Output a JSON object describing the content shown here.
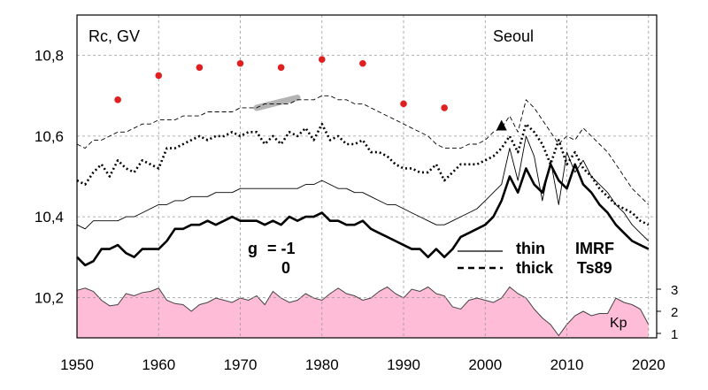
{
  "chart_data": {
    "type": "line",
    "ylabel": "Rc, GV",
    "station": "Seoul",
    "xlim": [
      1950,
      2021
    ],
    "ylim": [
      10.1,
      10.9
    ],
    "grid": true,
    "x_ticks": [
      1950,
      1960,
      1970,
      1980,
      1990,
      2000,
      2010,
      2020
    ],
    "y_ticks": [
      10.2,
      10.4,
      10.6,
      10.8
    ],
    "y_tick_labels": [
      "10,2",
      "10,4",
      "10,6",
      "10,8"
    ],
    "kp_axis": {
      "label": "Kp",
      "ticks": [
        1,
        2,
        3
      ],
      "range": [
        0.8,
        3.2
      ]
    },
    "legend": {
      "g_label": "g",
      "g_values": [
        "= -1",
        "0"
      ],
      "line_styles": [
        "thin",
        "thick"
      ],
      "models": [
        "IMRF",
        "Ts89"
      ]
    },
    "colors": {
      "kp_fill": "#ffbcd6",
      "kp_line": "#444444",
      "observed_points": "#e02020",
      "highlight_segment": "#b4b4b4",
      "marker": "#000000",
      "grid": "#999999"
    },
    "series": [
      {
        "key": "imrf_g_minus1",
        "style": "thin-dashed",
        "x": [
          1950,
          1951,
          1952,
          1953,
          1954,
          1955,
          1956,
          1957,
          1958,
          1959,
          1960,
          1961,
          1962,
          1963,
          1964,
          1965,
          1966,
          1967,
          1968,
          1969,
          1970,
          1971,
          1972,
          1973,
          1974,
          1975,
          1976,
          1977,
          1978,
          1979,
          1980,
          1981,
          1982,
          1983,
          1984,
          1985,
          1986,
          1987,
          1988,
          1989,
          1990,
          1991,
          1992,
          1993,
          1994,
          1995,
          1996,
          1997,
          1998,
          1999,
          2000,
          2001,
          2002,
          2003,
          2004,
          2005,
          2006,
          2007,
          2008,
          2009,
          2010,
          2011,
          2012,
          2013,
          2014,
          2015,
          2016,
          2017,
          2018,
          2019,
          2020
        ],
        "y": [
          10.58,
          10.57,
          10.59,
          10.59,
          10.6,
          10.61,
          10.61,
          10.62,
          10.63,
          10.63,
          10.64,
          10.64,
          10.64,
          10.65,
          10.65,
          10.65,
          10.66,
          10.66,
          10.66,
          10.66,
          10.67,
          10.67,
          10.67,
          10.68,
          10.68,
          10.68,
          10.68,
          10.69,
          10.69,
          10.69,
          10.7,
          10.7,
          10.69,
          10.69,
          10.68,
          10.68,
          10.67,
          10.66,
          10.65,
          10.64,
          10.63,
          10.62,
          10.61,
          10.6,
          10.58,
          10.57,
          10.57,
          10.57,
          10.58,
          10.58,
          10.59,
          10.61,
          10.62,
          10.65,
          10.61,
          10.69,
          10.67,
          10.64,
          10.61,
          10.58,
          10.6,
          10.59,
          10.62,
          10.6,
          10.58,
          10.56,
          10.53,
          10.5,
          10.47,
          10.45,
          10.43
        ]
      },
      {
        "key": "ts89_g_minus1",
        "style": "thick-dotted",
        "x": [
          1950,
          1951,
          1952,
          1953,
          1954,
          1955,
          1956,
          1957,
          1958,
          1959,
          1960,
          1961,
          1962,
          1963,
          1964,
          1965,
          1966,
          1967,
          1968,
          1969,
          1970,
          1971,
          1972,
          1973,
          1974,
          1975,
          1976,
          1977,
          1978,
          1979,
          1980,
          1981,
          1982,
          1983,
          1984,
          1985,
          1986,
          1987,
          1988,
          1989,
          1990,
          1991,
          1992,
          1993,
          1994,
          1995,
          1996,
          1997,
          1998,
          1999,
          2000,
          2001,
          2002,
          2003,
          2004,
          2005,
          2006,
          2007,
          2008,
          2009,
          2010,
          2011,
          2012,
          2013,
          2014,
          2015,
          2016,
          2017,
          2018,
          2019,
          2020
        ],
        "y": [
          10.49,
          10.48,
          10.51,
          10.53,
          10.5,
          10.54,
          10.52,
          10.51,
          10.54,
          10.53,
          10.52,
          10.57,
          10.57,
          10.58,
          10.59,
          10.6,
          10.59,
          10.6,
          10.6,
          10.61,
          10.6,
          10.61,
          10.61,
          10.58,
          10.6,
          10.58,
          10.61,
          10.6,
          10.62,
          10.59,
          10.63,
          10.59,
          10.6,
          10.58,
          10.58,
          10.59,
          10.56,
          10.56,
          10.55,
          10.53,
          10.52,
          10.52,
          10.51,
          10.51,
          10.53,
          10.49,
          10.51,
          10.53,
          10.53,
          10.53,
          10.54,
          10.55,
          10.57,
          10.6,
          10.56,
          10.63,
          10.61,
          10.58,
          10.53,
          10.59,
          10.53,
          10.56,
          10.52,
          10.5,
          10.47,
          10.45,
          10.43,
          10.42,
          10.41,
          10.39,
          10.38
        ]
      },
      {
        "key": "imrf_g_0",
        "style": "thin-solid",
        "x": [
          1950,
          1951,
          1952,
          1953,
          1954,
          1955,
          1956,
          1957,
          1958,
          1959,
          1960,
          1961,
          1962,
          1963,
          1964,
          1965,
          1966,
          1967,
          1968,
          1969,
          1970,
          1971,
          1972,
          1973,
          1974,
          1975,
          1976,
          1977,
          1978,
          1979,
          1980,
          1981,
          1982,
          1983,
          1984,
          1985,
          1986,
          1987,
          1988,
          1989,
          1990,
          1991,
          1992,
          1993,
          1994,
          1995,
          1996,
          1997,
          1998,
          1999,
          2000,
          2001,
          2002,
          2003,
          2004,
          2005,
          2006,
          2007,
          2008,
          2009,
          2010,
          2011,
          2012,
          2013,
          2014,
          2015,
          2016,
          2017,
          2018,
          2019,
          2020
        ],
        "y": [
          10.38,
          10.37,
          10.39,
          10.39,
          10.39,
          10.39,
          10.4,
          10.4,
          10.41,
          10.42,
          10.43,
          10.43,
          10.44,
          10.44,
          10.45,
          10.45,
          10.45,
          10.46,
          10.46,
          10.46,
          10.47,
          10.47,
          10.47,
          10.47,
          10.47,
          10.47,
          10.47,
          10.47,
          10.48,
          10.48,
          10.49,
          10.48,
          10.47,
          10.47,
          10.46,
          10.46,
          10.45,
          10.44,
          10.43,
          10.43,
          10.42,
          10.41,
          10.4,
          10.39,
          10.38,
          10.38,
          10.39,
          10.4,
          10.41,
          10.42,
          10.44,
          10.46,
          10.48,
          10.57,
          10.49,
          10.6,
          10.55,
          10.44,
          10.54,
          10.43,
          10.56,
          10.51,
          10.54,
          10.5,
          10.48,
          10.46,
          10.43,
          10.41,
          10.38,
          10.36,
          10.34
        ]
      },
      {
        "key": "ts89_g_0",
        "style": "thick-solid",
        "x": [
          1950,
          1951,
          1952,
          1953,
          1954,
          1955,
          1956,
          1957,
          1958,
          1959,
          1960,
          1961,
          1962,
          1963,
          1964,
          1965,
          1966,
          1967,
          1968,
          1969,
          1970,
          1971,
          1972,
          1973,
          1974,
          1975,
          1976,
          1977,
          1978,
          1979,
          1980,
          1981,
          1982,
          1983,
          1984,
          1985,
          1986,
          1987,
          1988,
          1989,
          1990,
          1991,
          1992,
          1993,
          1994,
          1995,
          1996,
          1997,
          1998,
          1999,
          2000,
          2001,
          2002,
          2003,
          2004,
          2005,
          2006,
          2007,
          2008,
          2009,
          2010,
          2011,
          2012,
          2013,
          2014,
          2015,
          2016,
          2017,
          2018,
          2019,
          2020
        ],
        "y": [
          10.3,
          10.28,
          10.29,
          10.32,
          10.32,
          10.33,
          10.31,
          10.3,
          10.32,
          10.32,
          10.32,
          10.34,
          10.37,
          10.37,
          10.38,
          10.38,
          10.39,
          10.38,
          10.39,
          10.4,
          10.39,
          10.39,
          10.39,
          10.38,
          10.39,
          10.38,
          10.4,
          10.39,
          10.4,
          10.4,
          10.41,
          10.39,
          10.39,
          10.38,
          10.38,
          10.39,
          10.37,
          10.36,
          10.35,
          10.34,
          10.33,
          10.32,
          10.32,
          10.3,
          10.32,
          10.3,
          10.32,
          10.35,
          10.36,
          10.37,
          10.38,
          10.4,
          10.44,
          10.5,
          10.46,
          10.52,
          10.48,
          10.46,
          10.53,
          10.49,
          10.47,
          10.53,
          10.48,
          10.46,
          10.43,
          10.41,
          10.38,
          10.36,
          10.34,
          10.33,
          10.32
        ]
      }
    ],
    "observed": {
      "x": [
        1955,
        1960,
        1965,
        1970,
        1975,
        1980,
        1985,
        1990,
        1995
      ],
      "y": [
        10.69,
        10.75,
        10.77,
        10.78,
        10.77,
        10.79,
        10.78,
        10.68,
        10.67
      ]
    },
    "highlight": {
      "x": [
        1972,
        1977
      ],
      "y": [
        10.67,
        10.695
      ]
    },
    "marker_point": {
      "x": 2002,
      "y": 10.625
    },
    "kp": {
      "x": [
        1950,
        1951,
        1952,
        1953,
        1954,
        1955,
        1956,
        1957,
        1958,
        1959,
        1960,
        1961,
        1962,
        1963,
        1964,
        1965,
        1966,
        1967,
        1968,
        1969,
        1970,
        1971,
        1972,
        1973,
        1974,
        1975,
        1976,
        1977,
        1978,
        1979,
        1980,
        1981,
        1982,
        1983,
        1984,
        1985,
        1986,
        1987,
        1988,
        1989,
        1990,
        1991,
        1992,
        1993,
        1994,
        1995,
        1996,
        1997,
        1998,
        1999,
        2000,
        2001,
        2002,
        2003,
        2004,
        2005,
        2006,
        2007,
        2008,
        2009,
        2010,
        2011,
        2012,
        2013,
        2014,
        2015,
        2016,
        2017,
        2018,
        2019,
        2020
      ],
      "y": [
        2.95,
        3.05,
        2.9,
        2.5,
        2.25,
        2.3,
        2.8,
        2.7,
        2.85,
        2.9,
        3.05,
        2.5,
        2.35,
        2.3,
        2.0,
        2.3,
        2.4,
        2.6,
        2.5,
        2.4,
        2.6,
        2.5,
        2.7,
        2.3,
        2.9,
        2.6,
        2.4,
        2.5,
        2.8,
        2.6,
        2.5,
        2.8,
        3.05,
        2.8,
        2.7,
        2.5,
        2.6,
        2.9,
        3.1,
        2.8,
        2.6,
        3.0,
        2.9,
        3.1,
        2.8,
        2.7,
        2.2,
        2.1,
        2.5,
        2.6,
        2.5,
        2.4,
        2.6,
        3.1,
        2.8,
        2.6,
        2.1,
        1.7,
        1.4,
        0.9,
        1.4,
        1.8,
        2.0,
        1.8,
        1.9,
        1.9,
        2.6,
        2.4,
        2.3,
        2.1,
        1.4
      ]
    }
  }
}
